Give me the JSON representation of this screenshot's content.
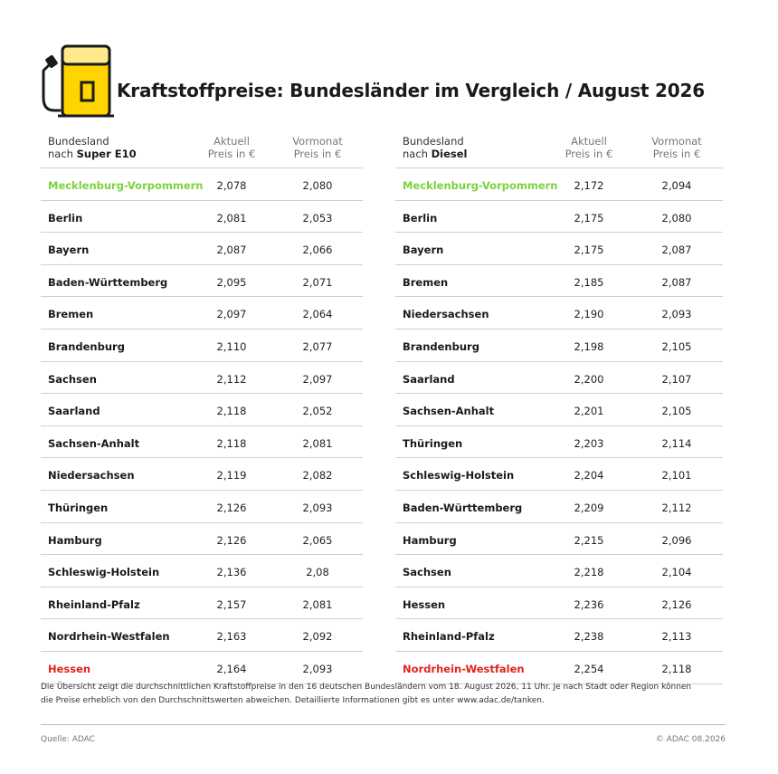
{
  "title": "Kraftstoffpreise: Bundesländer im Vergleich / August 2026",
  "colors": {
    "accent_yellow": "#ffd400",
    "highlight_green": "#7dd23c",
    "highlight_red": "#e2231a"
  },
  "icon": "fuel-pump-icon",
  "e10": {
    "header": {
      "col1_line1": "Bundesland",
      "col1_prefix": "nach ",
      "col1_fuel": "Super E10",
      "col2_line1": "Aktuell",
      "col2_line2": "Preis in €",
      "col3_line1": "Vormonat",
      "col3_line2": "Preis in €"
    },
    "rows": [
      {
        "state": "Mecklenburg-Vorpommern",
        "current": "2,078",
        "previous": "2,080",
        "highlight": "green"
      },
      {
        "state": "Berlin",
        "current": "2,081",
        "previous": "2,053"
      },
      {
        "state": "Bayern",
        "current": "2,087",
        "previous": "2,066"
      },
      {
        "state": "Baden-Württemberg",
        "current": "2,095",
        "previous": "2,071"
      },
      {
        "state": "Bremen",
        "current": "2,097",
        "previous": "2,064"
      },
      {
        "state": "Brandenburg",
        "current": "2,110",
        "previous": "2,077"
      },
      {
        "state": "Sachsen",
        "current": "2,112",
        "previous": "2,097"
      },
      {
        "state": "Saarland",
        "current": "2,118",
        "previous": "2,052"
      },
      {
        "state": "Sachsen-Anhalt",
        "current": "2,118",
        "previous": "2,081"
      },
      {
        "state": "Niedersachsen",
        "current": "2,119",
        "previous": "2,082"
      },
      {
        "state": "Thüringen",
        "current": "2,126",
        "previous": "2,093"
      },
      {
        "state": "Hamburg",
        "current": "2,126",
        "previous": "2,065"
      },
      {
        "state": "Schleswig-Holstein",
        "current": "2,136",
        "previous": "2,08"
      },
      {
        "state": "Rheinland-Pfalz",
        "current": "2,157",
        "previous": "2,081"
      },
      {
        "state": "Nordrhein-Westfalen",
        "current": "2,163",
        "previous": "2,092"
      },
      {
        "state": "Hessen",
        "current": "2,164",
        "previous": "2,093",
        "highlight": "red"
      }
    ]
  },
  "diesel": {
    "header": {
      "col1_line1": "Bundesland",
      "col1_prefix": "nach ",
      "col1_fuel": "Diesel",
      "col2_line1": "Aktuell",
      "col2_line2": "Preis in €",
      "col3_line1": "Vormonat",
      "col3_line2": "Preis in €"
    },
    "rows": [
      {
        "state": "Mecklenburg-Vorpommern",
        "current": "2,172",
        "previous": "2,094",
        "highlight": "green"
      },
      {
        "state": "Berlin",
        "current": "2,175",
        "previous": "2,080"
      },
      {
        "state": "Bayern",
        "current": "2,175",
        "previous": "2,087"
      },
      {
        "state": "Bremen",
        "current": "2,185",
        "previous": "2,087"
      },
      {
        "state": "Niedersachsen",
        "current": "2,190",
        "previous": "2,093"
      },
      {
        "state": "Brandenburg",
        "current": "2,198",
        "previous": "2,105"
      },
      {
        "state": "Saarland",
        "current": "2,200",
        "previous": "2,107"
      },
      {
        "state": "Sachsen-Anhalt",
        "current": "2,201",
        "previous": "2,105"
      },
      {
        "state": "Thüringen",
        "current": "2,203",
        "previous": "2,114"
      },
      {
        "state": "Schleswig-Holstein",
        "current": "2,204",
        "previous": "2,101"
      },
      {
        "state": "Baden-Württemberg",
        "current": "2,209",
        "previous": "2,112"
      },
      {
        "state": "Hamburg",
        "current": "2,215",
        "previous": "2,096"
      },
      {
        "state": "Sachsen",
        "current": "2,218",
        "previous": "2,104"
      },
      {
        "state": "Hessen",
        "current": "2,236",
        "previous": "2,126"
      },
      {
        "state": "Rheinland-Pfalz",
        "current": "2,238",
        "previous": "2,113"
      },
      {
        "state": "Nordrhein-Westfalen",
        "current": "2,254",
        "previous": "2,118",
        "highlight": "red"
      }
    ]
  },
  "note": "Die Übersicht zeigt die durchschnittlichen Kraftstoffpreise in den 16 deutschen Bundesländern vom 18. August 2026, 11 Uhr. Je nach Stadt oder Region können die Preise erheblich von den Durchschnittswerten abweichen. Detaillierte Informationen gibt es unter www.adac.de/tanken.",
  "source": "Quelle: ADAC",
  "copyright": "© ADAC 08.2026"
}
